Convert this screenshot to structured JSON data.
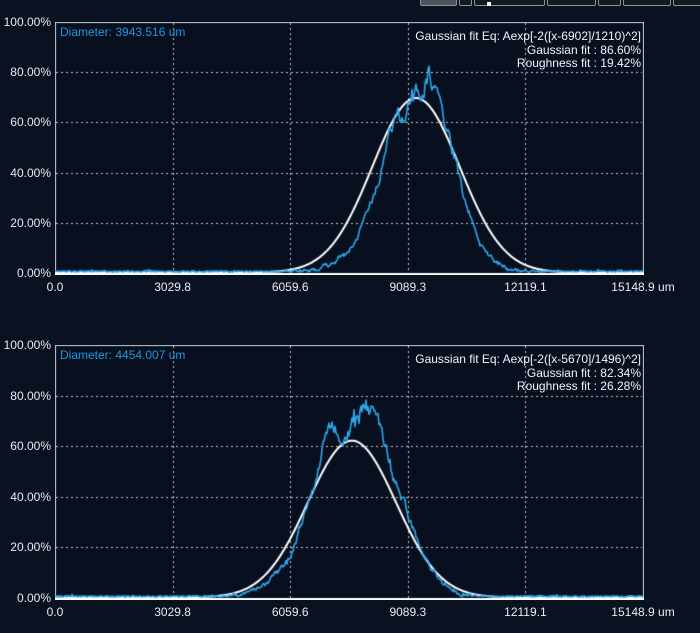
{
  "theme": {
    "background": "#0a1120",
    "plot_background": "#081020",
    "border_color": "#c6cbd2",
    "axis_line_color": "#ffffff",
    "grid_color": "#dde2e8",
    "tick_label_color": "#e9ecf0",
    "annotation_color": "#f1f4f7",
    "accent_blue": "#1f96dc",
    "trace_blue": "#2ea7ea",
    "fit_white": "#ffffff"
  },
  "toolbar": {
    "description": "row of buttons cut off by top edge, only bottom edges visible",
    "button_count": 7
  },
  "chart_data": [
    {
      "type": "line",
      "title": "Diameter: 3943.516 um",
      "xlabel": "um",
      "ylabel": "%",
      "xlim": [
        0,
        15148.9
      ],
      "ylim": [
        0,
        100
      ],
      "x_tick_values": [
        0,
        3029.8,
        6059.6,
        9089.3,
        12119.1,
        15148.9
      ],
      "x_tick_labels": [
        "0.0",
        "3029.8",
        "6059.6",
        "9089.3",
        "12119.1",
        "15148.9 um"
      ],
      "y_tick_values": [
        0,
        20,
        40,
        60,
        80,
        100
      ],
      "y_tick_labels": [
        "0.00%",
        "20.00%",
        "40.00%",
        "60.00%",
        "80.00%",
        "100.00%"
      ],
      "grid": true,
      "legend": false,
      "annotations": [
        "Gaussian fit Eq: Aexp[-2([x-6902]/1210)^2]",
        "Gaussian fit : 86.60%",
        "Roughness fit : 19.42%"
      ],
      "series": [
        {
          "name": "gaussian fit curve",
          "color": "#ffffff",
          "style": "smooth",
          "estimate": {
            "center_um": 9300,
            "width_left_um": 2250,
            "width_right_um": 2250,
            "peak_pct": 69.5
          }
        },
        {
          "name": "measured beam profile",
          "color": "#2ea7ea",
          "style": "noisy",
          "estimate": {
            "center_um": 9530,
            "width_left_um": 1950,
            "width_right_um": 1520,
            "peak_pct": 75
          },
          "noise": {
            "seed": 11,
            "baseline_pct": 0.55,
            "spike_pct": 5
          }
        }
      ]
    },
    {
      "type": "line",
      "title": "Diameter: 4454.007 um",
      "xlabel": "um",
      "ylabel": "%",
      "xlim": [
        0,
        15148.9
      ],
      "ylim": [
        0,
        100
      ],
      "x_tick_values": [
        0,
        3029.8,
        6059.6,
        9089.3,
        12119.1,
        15148.9
      ],
      "x_tick_labels": [
        "0.0",
        "3029.8",
        "6059.6",
        "9089.3",
        "12119.1",
        "15148.9 um"
      ],
      "y_tick_values": [
        0,
        20,
        40,
        60,
        80,
        100
      ],
      "y_tick_labels": [
        "0.00%",
        "20.00%",
        "40.00%",
        "60.00%",
        "80.00%",
        "100.00%"
      ],
      "grid": true,
      "legend": false,
      "annotations": [
        "Gaussian fit Eq: Aexp[-2([x-5670]/1496)^2]",
        "Gaussian fit : 82.34%",
        "Roughness fit : 26.28%"
      ],
      "series": [
        {
          "name": "gaussian fit curve",
          "color": "#ffffff",
          "style": "smooth",
          "estimate": {
            "center_um": 7650,
            "width_left_um": 2270,
            "width_right_um": 2270,
            "peak_pct": 62
          }
        },
        {
          "name": "measured beam profile",
          "color": "#2ea7ea",
          "style": "noisy",
          "estimate": {
            "center_um": 7850,
            "width_left_um": 2150,
            "width_right_um": 1900,
            "peak_pct": 75
          },
          "noise": {
            "seed": 23,
            "baseline_pct": 0.55,
            "spike_pct": 4.5
          }
        }
      ]
    }
  ]
}
